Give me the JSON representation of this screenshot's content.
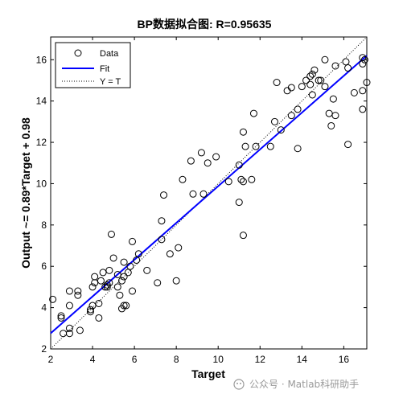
{
  "chart_data": {
    "type": "scatter",
    "title": "BP数据拟合图: R=0.95635",
    "xlabel": "Target",
    "ylabel": "Output ~= 0.89*Target + 0.98",
    "xlim": [
      2,
      17.1
    ],
    "ylim": [
      2,
      17.1
    ],
    "xticks": [
      2,
      4,
      6,
      8,
      10,
      12,
      14,
      16
    ],
    "yticks": [
      2,
      4,
      6,
      8,
      10,
      12,
      14,
      16
    ],
    "grid": false,
    "legend_position": "top-left",
    "legend": [
      {
        "label": "Data",
        "style": "circle-marker",
        "color": "#000000"
      },
      {
        "label": "Fit",
        "style": "solid",
        "color": "#0000ff"
      },
      {
        "label": "Y = T",
        "style": "dotted",
        "color": "#000000"
      }
    ],
    "fit": {
      "slope": 0.89,
      "intercept": 0.98
    },
    "series": [
      {
        "name": "Data",
        "points": [
          [
            2.1,
            4.4
          ],
          [
            2.5,
            3.5
          ],
          [
            2.5,
            3.6
          ],
          [
            2.6,
            2.75
          ],
          [
            2.9,
            2.75
          ],
          [
            2.9,
            3.0
          ],
          [
            2.9,
            4.1
          ],
          [
            2.9,
            4.8
          ],
          [
            3.3,
            4.6
          ],
          [
            3.3,
            4.8
          ],
          [
            3.4,
            2.9
          ],
          [
            3.9,
            3.8
          ],
          [
            3.9,
            3.9
          ],
          [
            4.0,
            4.1
          ],
          [
            4.0,
            5.0
          ],
          [
            4.1,
            5.2
          ],
          [
            4.1,
            5.5
          ],
          [
            4.3,
            3.5
          ],
          [
            4.3,
            4.2
          ],
          [
            4.4,
            5.3
          ],
          [
            4.5,
            5.7
          ],
          [
            4.6,
            5.0
          ],
          [
            4.7,
            5.0
          ],
          [
            4.7,
            5.1
          ],
          [
            4.8,
            5.2
          ],
          [
            4.8,
            5.8
          ],
          [
            4.9,
            7.55
          ],
          [
            5.0,
            6.4
          ],
          [
            5.2,
            5.0
          ],
          [
            5.2,
            5.6
          ],
          [
            5.3,
            4.6
          ],
          [
            5.4,
            3.95
          ],
          [
            5.5,
            4.1
          ],
          [
            5.4,
            5.3
          ],
          [
            5.5,
            5.5
          ],
          [
            5.5,
            6.2
          ],
          [
            5.6,
            4.1
          ],
          [
            5.7,
            5.7
          ],
          [
            5.8,
            6.0
          ],
          [
            5.9,
            4.8
          ],
          [
            5.9,
            7.2
          ],
          [
            6.1,
            6.3
          ],
          [
            6.2,
            6.6
          ],
          [
            6.6,
            5.8
          ],
          [
            7.1,
            5.2
          ],
          [
            7.3,
            7.3
          ],
          [
            7.3,
            8.2
          ],
          [
            7.4,
            9.45
          ],
          [
            7.7,
            6.6
          ],
          [
            8.0,
            5.3
          ],
          [
            8.1,
            6.9
          ],
          [
            8.3,
            10.2
          ],
          [
            8.7,
            11.1
          ],
          [
            8.8,
            9.5
          ],
          [
            9.2,
            11.5
          ],
          [
            9.3,
            9.5
          ],
          [
            9.5,
            11.0
          ],
          [
            9.9,
            11.3
          ],
          [
            10.5,
            10.1
          ],
          [
            11.0,
            9.1
          ],
          [
            11.1,
            10.2
          ],
          [
            11.2,
            10.1
          ],
          [
            11.0,
            10.9
          ],
          [
            11.2,
            7.5
          ],
          [
            11.3,
            11.8
          ],
          [
            11.2,
            12.5
          ],
          [
            11.7,
            13.4
          ],
          [
            11.8,
            11.8
          ],
          [
            11.6,
            10.2
          ],
          [
            12.5,
            11.8
          ],
          [
            12.7,
            13.0
          ],
          [
            12.8,
            14.9
          ],
          [
            13.0,
            12.6
          ],
          [
            13.3,
            14.5
          ],
          [
            13.5,
            13.3
          ],
          [
            13.5,
            14.65
          ],
          [
            13.8,
            13.6
          ],
          [
            13.8,
            11.7
          ],
          [
            14.0,
            14.7
          ],
          [
            14.2,
            15.0
          ],
          [
            14.4,
            15.2
          ],
          [
            14.4,
            14.8
          ],
          [
            14.5,
            15.3
          ],
          [
            14.6,
            15.5
          ],
          [
            14.5,
            14.3
          ],
          [
            14.8,
            15.0
          ],
          [
            14.9,
            15.0
          ],
          [
            15.1,
            16.0
          ],
          [
            15.1,
            14.7
          ],
          [
            15.3,
            13.4
          ],
          [
            15.4,
            12.8
          ],
          [
            15.5,
            14.1
          ],
          [
            15.6,
            13.3
          ],
          [
            15.6,
            15.7
          ],
          [
            16.1,
            15.9
          ],
          [
            16.2,
            11.9
          ],
          [
            16.2,
            15.6
          ],
          [
            16.5,
            14.4
          ],
          [
            16.9,
            16.1
          ],
          [
            16.9,
            15.8
          ],
          [
            16.9,
            14.5
          ],
          [
            16.9,
            13.6
          ],
          [
            17.0,
            16.0
          ],
          [
            17.1,
            14.9
          ]
        ]
      }
    ]
  },
  "watermark": {
    "text": "公众号 · Matlab科研助手"
  }
}
